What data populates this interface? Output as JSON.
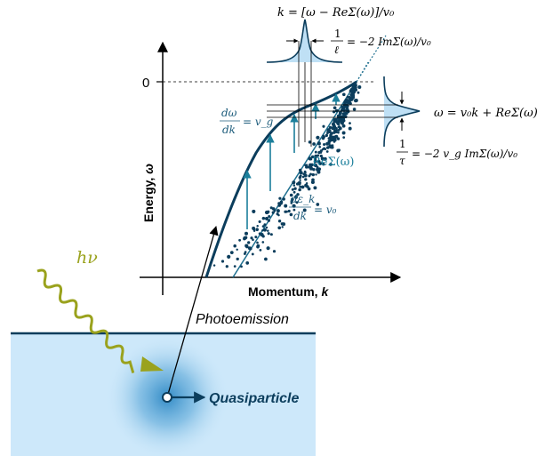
{
  "colors": {
    "axis": "#000000",
    "dispersion": "#0b3d5c",
    "bare_band": "#1e6f8f",
    "accent_teal": "#1b7f9b",
    "light_blue_fill": "#cfe7f7",
    "peak_fill": "#bfe0f5",
    "surface_fill": "#cde8fa",
    "surface_edge": "#0b3d5c",
    "photon": "#9aa21d",
    "text": "#000000",
    "blue_text": "#1e5d7c"
  },
  "axes": {
    "y_label_prefix": "Energy, ",
    "y_label_symbol": "ω",
    "x_label_prefix": "Momentum, ",
    "x_label_symbol": "k",
    "zero_label": "0"
  },
  "annotations": {
    "k_relation": "k = [ω − ReΣ(ω)]/v₀",
    "mdc_width_numerator": "1",
    "mdc_width_denominator": "ℓ",
    "mdc_width_rhs": "= −2 ImΣ(ω)/v₀",
    "omega_relation": "ω = v₀k + ReΣ(ω)",
    "edc_width_numerator": "1",
    "edc_width_denominator": "τ",
    "edc_width_rhs": "= −2 v_g ImΣ(ω)/v₀",
    "group_velocity_num": "dω",
    "group_velocity_den": "dk",
    "group_velocity_rhs": "= v_g",
    "self_energy_label": "ReΣ(ω)",
    "bare_velocity_num": "dε_k",
    "bare_velocity_den": "dk",
    "bare_velocity_rhs": "= v₀"
  },
  "process": {
    "photon_label": "hν",
    "photoemission_label": "Photoemission",
    "quasiparticle_label": "Quasiparticle"
  }
}
